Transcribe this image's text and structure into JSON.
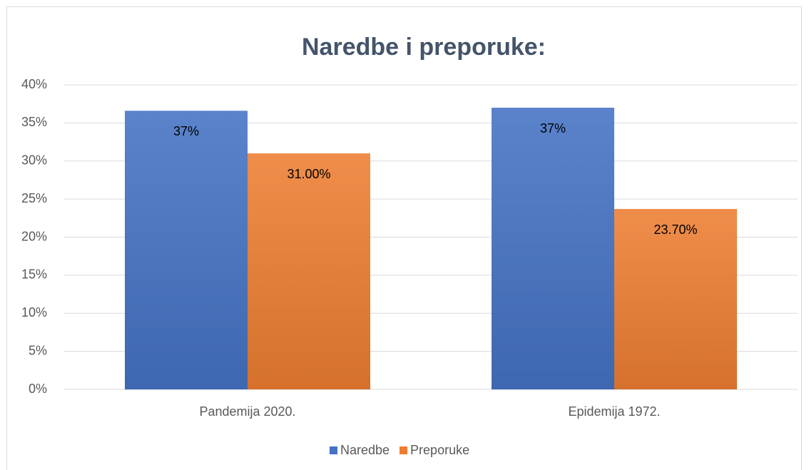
{
  "chart_data": {
    "type": "bar",
    "title": "Naredbe i preporuke:",
    "categories": [
      "Pandemija 2020.",
      "Epidemija 1972."
    ],
    "series": [
      {
        "name": "Naredbe",
        "color": "#4472c4",
        "values": [
          36.6,
          37
        ],
        "value_labels": [
          "37%",
          "37%"
        ]
      },
      {
        "name": "Preporuke",
        "color": "#ed7d31",
        "values": [
          31,
          23.7
        ],
        "value_labels": [
          "31.00%",
          "23.70%"
        ]
      }
    ],
    "ylim": [
      0,
      40
    ],
    "yticks": [
      {
        "value": 0,
        "label": "0%"
      },
      {
        "value": 5,
        "label": "5%"
      },
      {
        "value": 10,
        "label": "10%"
      },
      {
        "value": 15,
        "label": "15%"
      },
      {
        "value": 20,
        "label": "20%"
      },
      {
        "value": 25,
        "label": "25%"
      },
      {
        "value": 30,
        "label": "30%"
      },
      {
        "value": 35,
        "label": "35%"
      },
      {
        "value": 40,
        "label": "40%"
      }
    ],
    "grid": true,
    "legend": "bottom"
  }
}
